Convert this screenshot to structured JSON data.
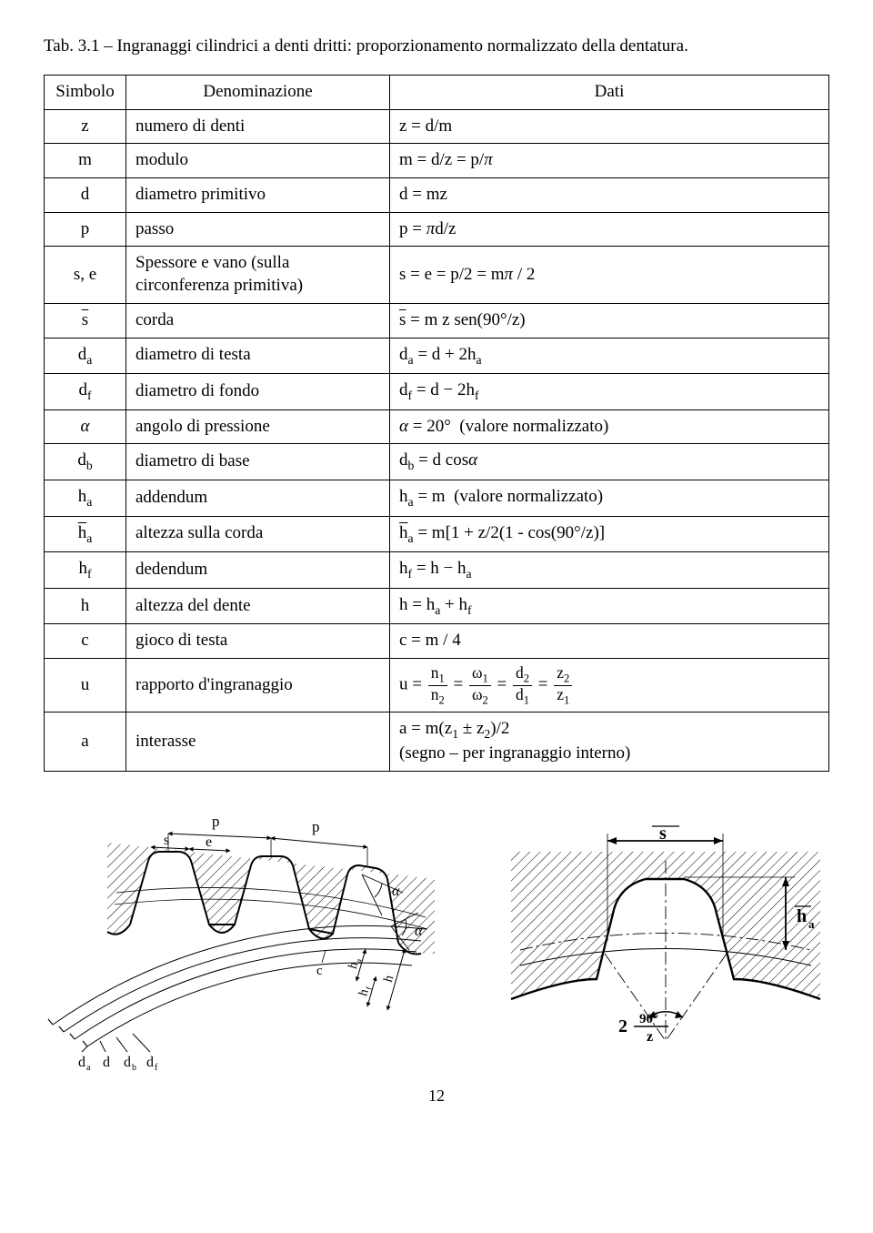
{
  "caption": "Tab. 3.1 – Ingranaggi cilindrici a denti dritti: proporzionamento normalizzato della dentatura.",
  "header": {
    "simbolo": "Simbolo",
    "denominazione": "Denominazione",
    "dati": "Dati"
  },
  "rows": [
    {
      "sym": "z",
      "den": "numero di denti",
      "dati": "z = d/m"
    },
    {
      "sym": "m",
      "den": "modulo",
      "dati": "m = d/z = p/<span class=\"ital\">π</span>"
    },
    {
      "sym": "d",
      "den": "diametro primitivo",
      "dati": "d = mz"
    },
    {
      "sym": "p",
      "den": "passo",
      "dati": "p = <span class=\"ital\">π</span>d/z"
    },
    {
      "sym": "s, e",
      "den": "Spessore e vano (sulla circonferenza primitiva)",
      "dati": "s = e = p/2 = m<span class=\"ital\">π</span> / 2"
    },
    {
      "sym": "<span class=\"bar\">s</span>",
      "den": "corda",
      "dati": "<span class=\"bar\">s</span> = m z sen(90°/z)"
    },
    {
      "sym": "d<span class=\"sub\">a</span>",
      "den": "diametro di testa",
      "dati": "d<span class=\"sub\">a</span> = d + 2h<span class=\"sub\">a</span>"
    },
    {
      "sym": "d<span class=\"sub\">f</span>",
      "den": "diametro di fondo",
      "dati": "d<span class=\"sub\">f</span> = d − 2h<span class=\"sub\">f</span>"
    },
    {
      "sym": "<span class=\"ital\">α</span>",
      "den": "angolo di pressione",
      "dati": "<span class=\"ital\">α</span> = 20°&nbsp;&nbsp;(valore normalizzato)"
    },
    {
      "sym": "d<span class=\"sub\">b</span>",
      "den": "diametro di base",
      "dati": "d<span class=\"sub\">b</span> = d cos<span class=\"ital\">α</span>"
    },
    {
      "sym": "h<span class=\"sub\">a</span>",
      "den": "addendum",
      "dati": "h<span class=\"sub\">a</span> = m&nbsp;&nbsp;(valore normalizzato)"
    },
    {
      "sym": "<span class=\"bar\">h</span><span class=\"sub\">a</span>",
      "den": "altezza sulla corda",
      "dati": "<span class=\"bar\">h</span><span class=\"sub\">a</span> = m[1 + z/2(1 - cos(90°/z)]"
    },
    {
      "sym": "h<span class=\"sub\">f</span>",
      "den": "dedendum",
      "dati": "h<span class=\"sub\">f</span> = h − h<span class=\"sub\">a</span>"
    },
    {
      "sym": "h",
      "den": "altezza del dente",
      "dati": "h = h<span class=\"sub\">a</span> + h<span class=\"sub\">f</span>"
    },
    {
      "sym": "c",
      "den": "gioco di testa",
      "dati": "c = m / 4"
    },
    {
      "sym": "u",
      "den": "rapporto d'ingranaggio",
      "dati": "u = <span class=\"frac\"><span class=\"num\">n<span class=\"sub\">1</span></span><span class=\"den\">n<span class=\"sub\">2</span></span></span> = <span class=\"frac\"><span class=\"num\">ω<span class=\"sub\">1</span></span><span class=\"den\">ω<span class=\"sub\">2</span></span></span> = <span class=\"frac\"><span class=\"num\">d<span class=\"sub\">2</span></span><span class=\"den\">d<span class=\"sub\">1</span></span></span> = <span class=\"frac\"><span class=\"num\">z<span class=\"sub\">2</span></span><span class=\"den\">z<span class=\"sub\">1</span></span></span>"
    },
    {
      "sym": "a",
      "den": "interasse",
      "dati": "a = m(z<span class=\"sub\">1</span> ± z<span class=\"sub\">2</span>)/2<br>(segno – per ingranaggio interno)"
    }
  ],
  "diagramLabels": {
    "left": {
      "p": "p",
      "s": "s",
      "e": "e",
      "alpha": "α",
      "c": "c",
      "da": "d",
      "d": "d",
      "db": "d",
      "df": "d",
      "ha": "h",
      "hf": "h",
      "h": "h",
      "suba": "a",
      "subb": "b",
      "subf": "f"
    },
    "right": {
      "sbar": "s",
      "hbar": "h",
      "suba": "a",
      "fracTop": "90°",
      "fracBot": "z",
      "two": "2"
    }
  },
  "pageNumber": "12",
  "colors": {
    "stroke": "#000000",
    "hatch": "#000000",
    "bg": "#ffffff"
  }
}
